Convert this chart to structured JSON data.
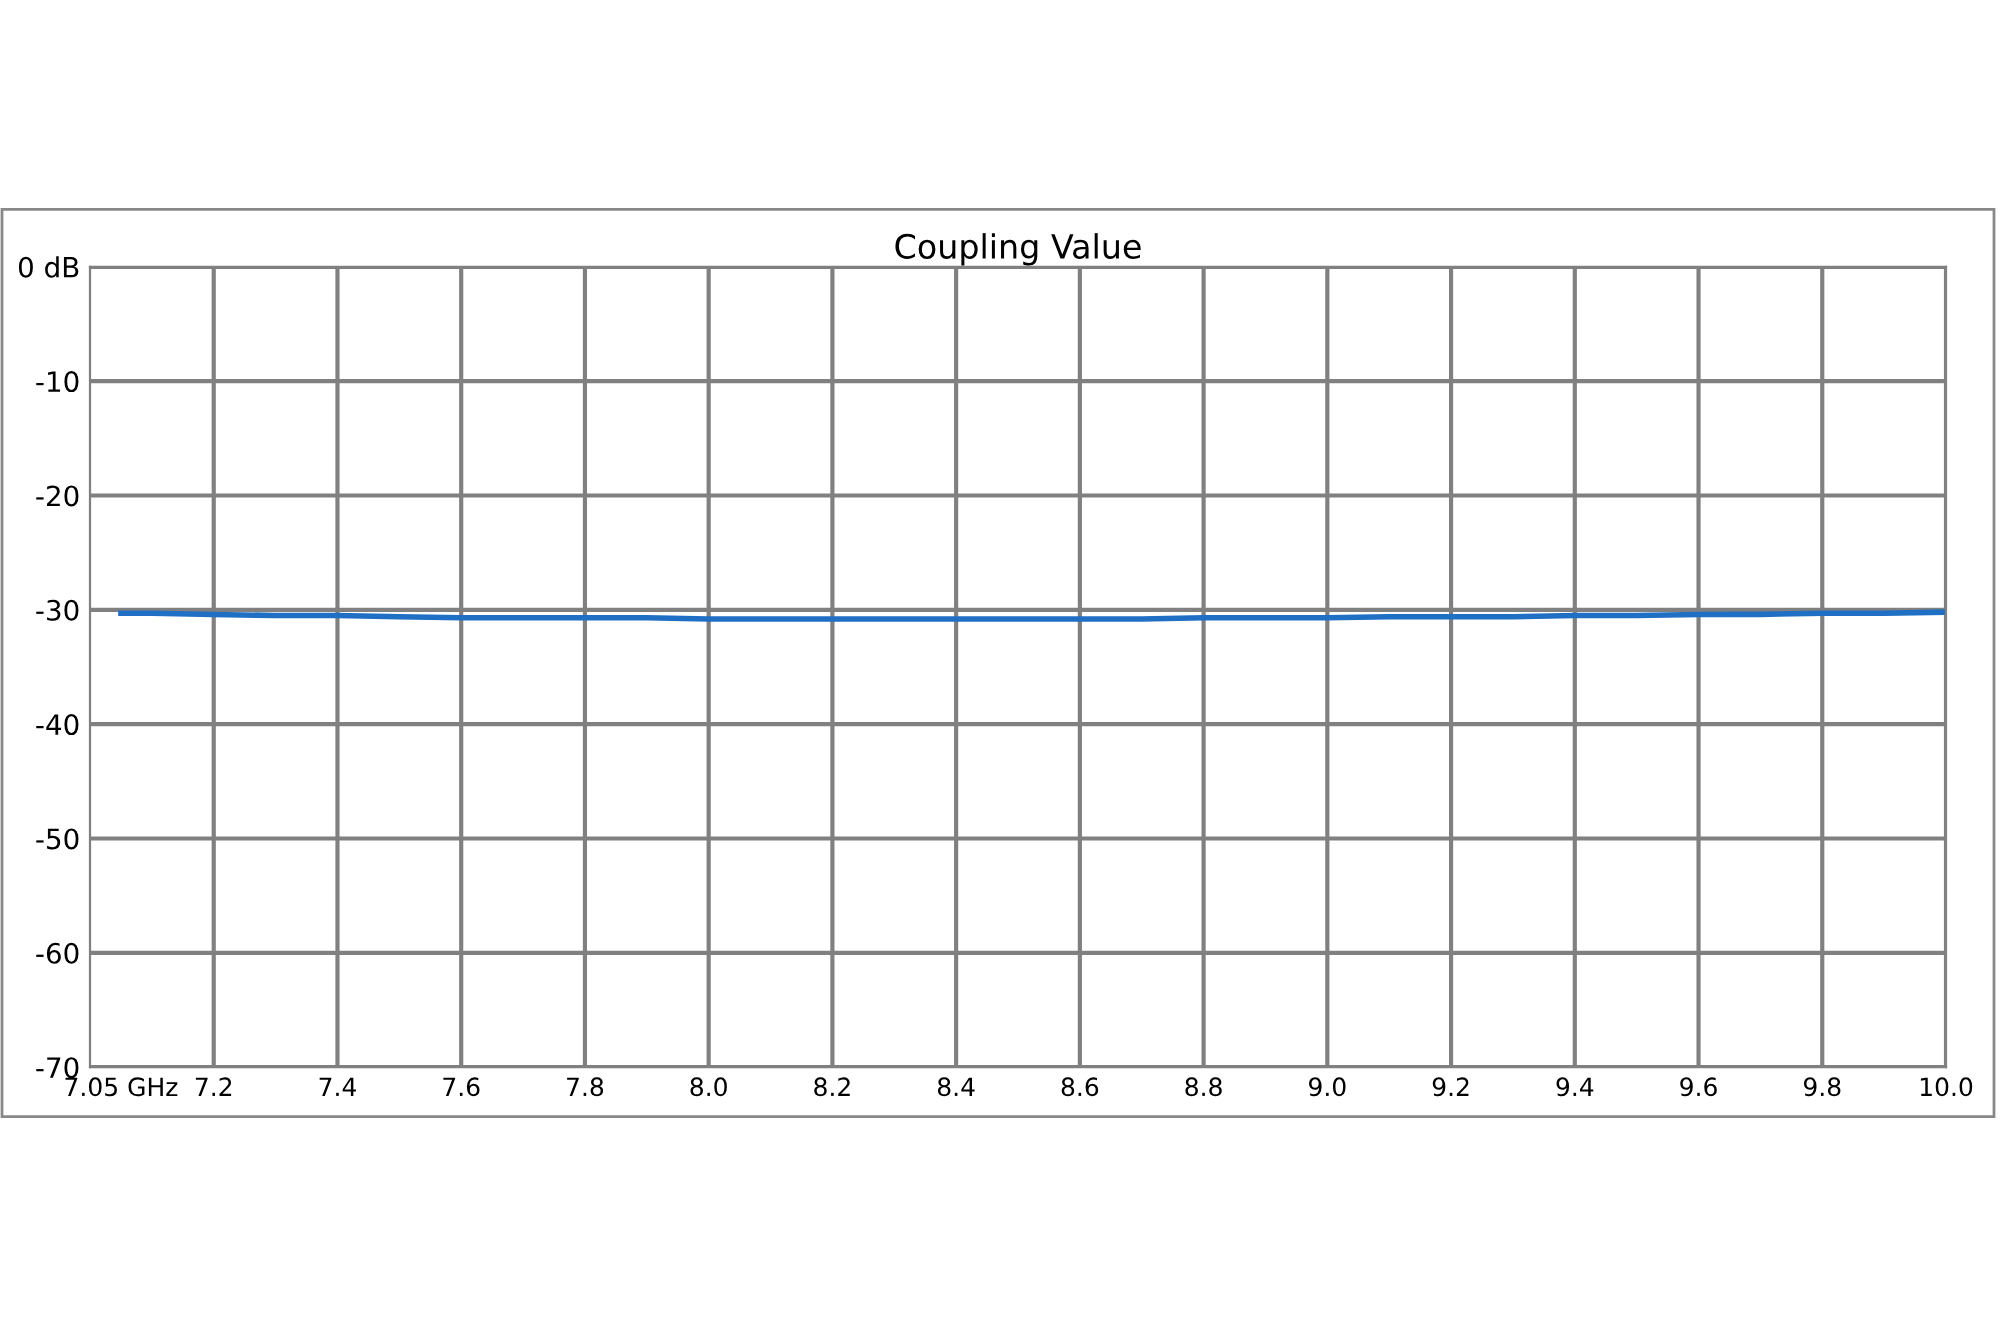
{
  "chart_data": {
    "type": "line",
    "title": "Coupling Value",
    "x": [
      7.05,
      7.1,
      7.2,
      7.3,
      7.4,
      7.5,
      7.6,
      7.7,
      7.8,
      7.9,
      8.0,
      8.1,
      8.2,
      8.3,
      8.4,
      8.5,
      8.6,
      8.7,
      8.8,
      8.9,
      9.0,
      9.1,
      9.2,
      9.3,
      9.4,
      9.5,
      9.6,
      9.7,
      9.8,
      9.9,
      10.0
    ],
    "series": [
      {
        "color": "#1f6fc5",
        "values": [
          -30.3,
          -30.3,
          -30.4,
          -30.5,
          -30.5,
          -30.6,
          -30.7,
          -30.7,
          -30.7,
          -30.7,
          -30.8,
          -30.8,
          -30.8,
          -30.8,
          -30.8,
          -30.8,
          -30.8,
          -30.8,
          -30.7,
          -30.7,
          -30.7,
          -30.6,
          -30.6,
          -30.6,
          -30.5,
          -30.5,
          -30.4,
          -30.4,
          -30.3,
          -30.3,
          -30.2
        ]
      }
    ],
    "xlim": [
      7.0,
      10.0
    ],
    "xticks": [
      {
        "value": 7.05,
        "label": "7.05 GHz"
      },
      {
        "value": 7.2,
        "label": "7.2"
      },
      {
        "value": 7.4,
        "label": "7.4"
      },
      {
        "value": 7.6,
        "label": "7.6"
      },
      {
        "value": 7.8,
        "label": "7.8"
      },
      {
        "value": 8.0,
        "label": "8.0"
      },
      {
        "value": 8.2,
        "label": "8.2"
      },
      {
        "value": 8.4,
        "label": "8.4"
      },
      {
        "value": 8.6,
        "label": "8.6"
      },
      {
        "value": 8.8,
        "label": "8.8"
      },
      {
        "value": 9.0,
        "label": "9.0"
      },
      {
        "value": 9.2,
        "label": "9.2"
      },
      {
        "value": 9.4,
        "label": "9.4"
      },
      {
        "value": 9.6,
        "label": "9.6"
      },
      {
        "value": 9.8,
        "label": "9.8"
      },
      {
        "value": 10.0,
        "label": "10.0"
      }
    ],
    "ylim": [
      -70,
      0
    ],
    "yticks": [
      {
        "value": 0,
        "label": "0 dB"
      },
      -10,
      -20,
      -30,
      -40,
      -50,
      -60,
      -70
    ],
    "grid": true,
    "legend": false,
    "marker": "none",
    "line_style": "solid"
  }
}
